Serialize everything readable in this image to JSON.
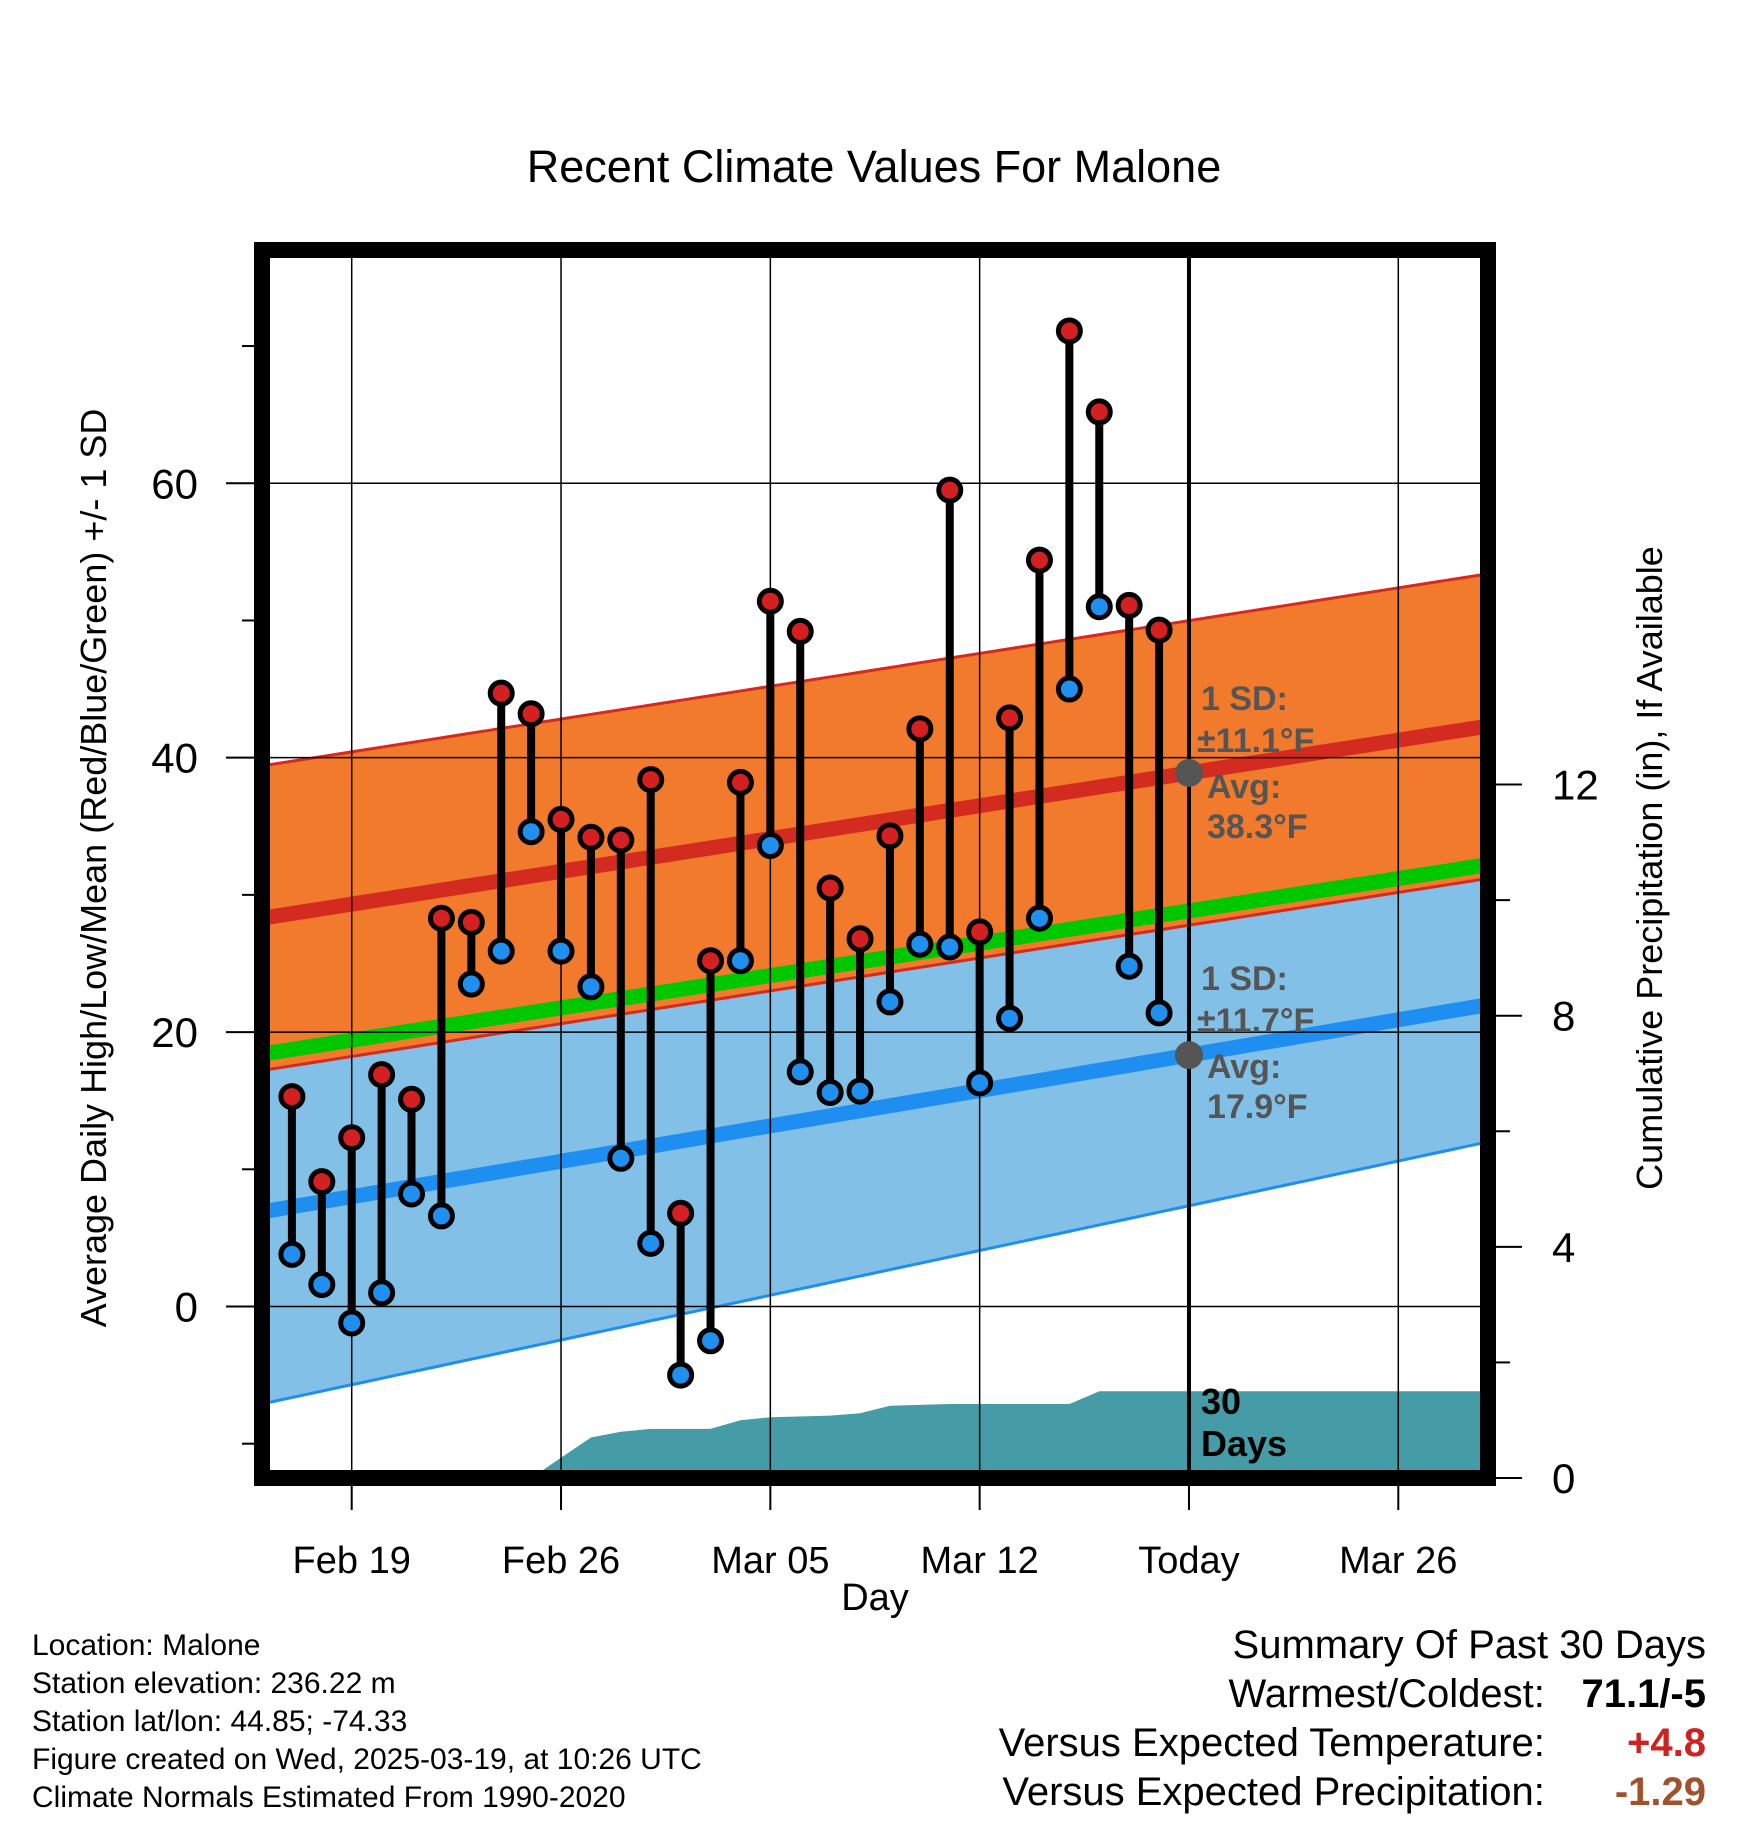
{
  "chart_data": {
    "type": "line",
    "title": "Recent Climate Values For Malone",
    "xlabel": "Day",
    "ylabel_left": "Average Daily High/Low/Mean (Red/Blue/Green) +/- 1 SD",
    "ylabel_right": "Cumulative Precipitation (in), If Available",
    "x_ticks": [
      {
        "label": "Feb 19",
        "day": 0
      },
      {
        "label": "Feb 26",
        "day": 7
      },
      {
        "label": "Mar 05",
        "day": 14
      },
      {
        "label": "Mar 12",
        "day": 21
      },
      {
        "label": "Today",
        "day": 28
      },
      {
        "label": "Mar 26",
        "day": 35
      }
    ],
    "y_left_ticks": [
      0,
      20,
      40,
      60
    ],
    "y_right_ticks": [
      0,
      4,
      8,
      12
    ],
    "xlim": [
      -3,
      38
    ],
    "ylim_left": [
      -12.5,
      77
    ],
    "ylim_right": [
      0,
      21.25
    ],
    "today_day": 28,
    "today_label_lines": [
      "30",
      "Days"
    ],
    "colors": {
      "high_band": "#f27a2c",
      "high_band_edge": "#d42b20",
      "high_mean": "#d42b20",
      "low_band": "#82c0e8",
      "low_band_edge": "#1e8ff0",
      "low_mean": "#1e8ff0",
      "overlap": "#9a1212",
      "mean": "#00c800",
      "precip": "#459ca6",
      "high_marker": "#d42020",
      "low_marker": "#2090f0"
    },
    "normals": {
      "high": {
        "start": 28.3,
        "end": 42.3,
        "sd_start": 11.1,
        "sd_end": 11.1
      },
      "low": {
        "start": 6.9,
        "end": 22.0,
        "sd_start": 14.0,
        "sd_end": 10.0
      },
      "mean": {
        "start": 18.4,
        "end": 32.2
      }
    },
    "high_annotation": [
      "1 SD:",
      "±11.1°F",
      "Avg:",
      "38.3°F"
    ],
    "low_annotation": [
      "1 SD:",
      "±11.7°F",
      "Avg:",
      "17.9°F"
    ],
    "highs": [
      15.3,
      9.1,
      12.3,
      16.9,
      15.1,
      28.3,
      28.0,
      44.7,
      43.2,
      35.5,
      34.2,
      34.0,
      38.4,
      6.8,
      25.2,
      38.2,
      51.4,
      49.2,
      30.5,
      26.8,
      34.3,
      42.1,
      59.5,
      27.3,
      42.9,
      54.4,
      71.1,
      65.2,
      51.1,
      49.3
    ],
    "lows": [
      3.8,
      1.6,
      -1.2,
      1.0,
      8.2,
      6.6,
      23.5,
      25.9,
      34.6,
      25.9,
      23.3,
      10.8,
      4.6,
      -5.0,
      -2.5,
      25.2,
      33.6,
      17.1,
      15.6,
      15.7,
      22.2,
      26.4,
      26.2,
      16.3,
      21.0,
      28.3,
      45.0,
      51.0,
      24.8,
      21.4
    ],
    "precip_cumulative": [
      {
        "day": 3.8,
        "value": 0.0
      },
      {
        "day": 6.0,
        "value": 0.0
      },
      {
        "day": 7.0,
        "value": 0.35
      },
      {
        "day": 8.0,
        "value": 0.7
      },
      {
        "day": 9.0,
        "value": 0.8
      },
      {
        "day": 10.0,
        "value": 0.85
      },
      {
        "day": 12.0,
        "value": 0.85
      },
      {
        "day": 13.0,
        "value": 1.0
      },
      {
        "day": 14.0,
        "value": 1.05
      },
      {
        "day": 16.0,
        "value": 1.08
      },
      {
        "day": 17.0,
        "value": 1.12
      },
      {
        "day": 18.0,
        "value": 1.25
      },
      {
        "day": 20.0,
        "value": 1.28
      },
      {
        "day": 24.0,
        "value": 1.28
      },
      {
        "day": 25.0,
        "value": 1.5
      },
      {
        "day": 38.0,
        "value": 1.5
      }
    ]
  },
  "footer": {
    "lines": [
      "Location: Malone",
      "Station elevation: 236.22 m",
      "Station lat/lon: 44.85; -74.33",
      "Figure created on Wed, 2025-03-19, at 10:26 UTC",
      "Climate Normals Estimated From 1990-2020"
    ]
  },
  "summary": {
    "title": "Summary Of Past 30 Days",
    "warmest_label": "Warmest/Coldest:",
    "warmest_value": "71.1/-5",
    "temp_label": "Versus Expected Temperature:",
    "temp_value": "+4.8",
    "precip_label": "Versus Expected Precipitation:",
    "precip_value": "-1.29",
    "colors": {
      "temp": "#cc2222",
      "precip": "#a0522d"
    }
  }
}
